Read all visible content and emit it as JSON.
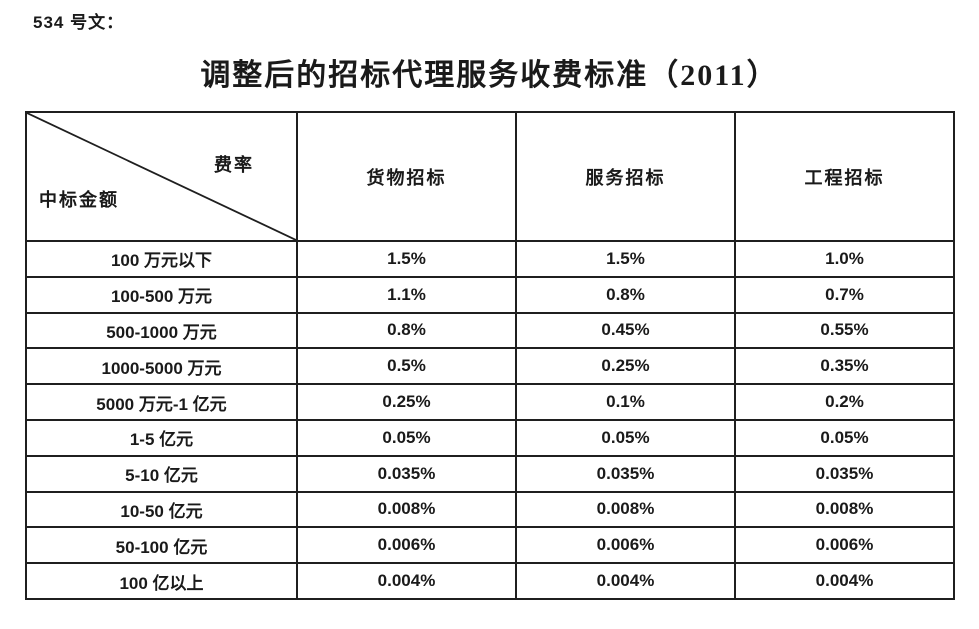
{
  "doc": {
    "doc_ref": "534 号文：",
    "title": "调整后的招标代理服务收费标准（2011）"
  },
  "table": {
    "corner": {
      "top_label": "费率",
      "bottom_label": "中标金额"
    },
    "columns": [
      "货物招标",
      "服务招标",
      "工程招标"
    ],
    "rows": [
      {
        "label": "100 万元以下",
        "values": [
          "1.5%",
          "1.5%",
          "1.0%"
        ]
      },
      {
        "label": "100-500 万元",
        "values": [
          "1.1%",
          "0.8%",
          "0.7%"
        ]
      },
      {
        "label": "500-1000 万元",
        "values": [
          "0.8%",
          "0.45%",
          "0.55%"
        ]
      },
      {
        "label": "1000-5000 万元",
        "values": [
          "0.5%",
          "0.25%",
          "0.35%"
        ]
      },
      {
        "label": "5000 万元-1 亿元",
        "values": [
          "0.25%",
          "0.1%",
          "0.2%"
        ]
      },
      {
        "label": "1-5 亿元",
        "values": [
          "0.05%",
          "0.05%",
          "0.05%"
        ]
      },
      {
        "label": "5-10 亿元",
        "values": [
          "0.035%",
          "0.035%",
          "0.035%"
        ]
      },
      {
        "label": "10-50 亿元",
        "values": [
          "0.008%",
          "0.008%",
          "0.008%"
        ]
      },
      {
        "label": "50-100 亿元",
        "values": [
          "0.006%",
          "0.006%",
          "0.006%"
        ]
      },
      {
        "label": "100 亿以上",
        "values": [
          "0.004%",
          "0.004%",
          "0.004%"
        ]
      }
    ],
    "border_color": "#1f1f1f"
  }
}
